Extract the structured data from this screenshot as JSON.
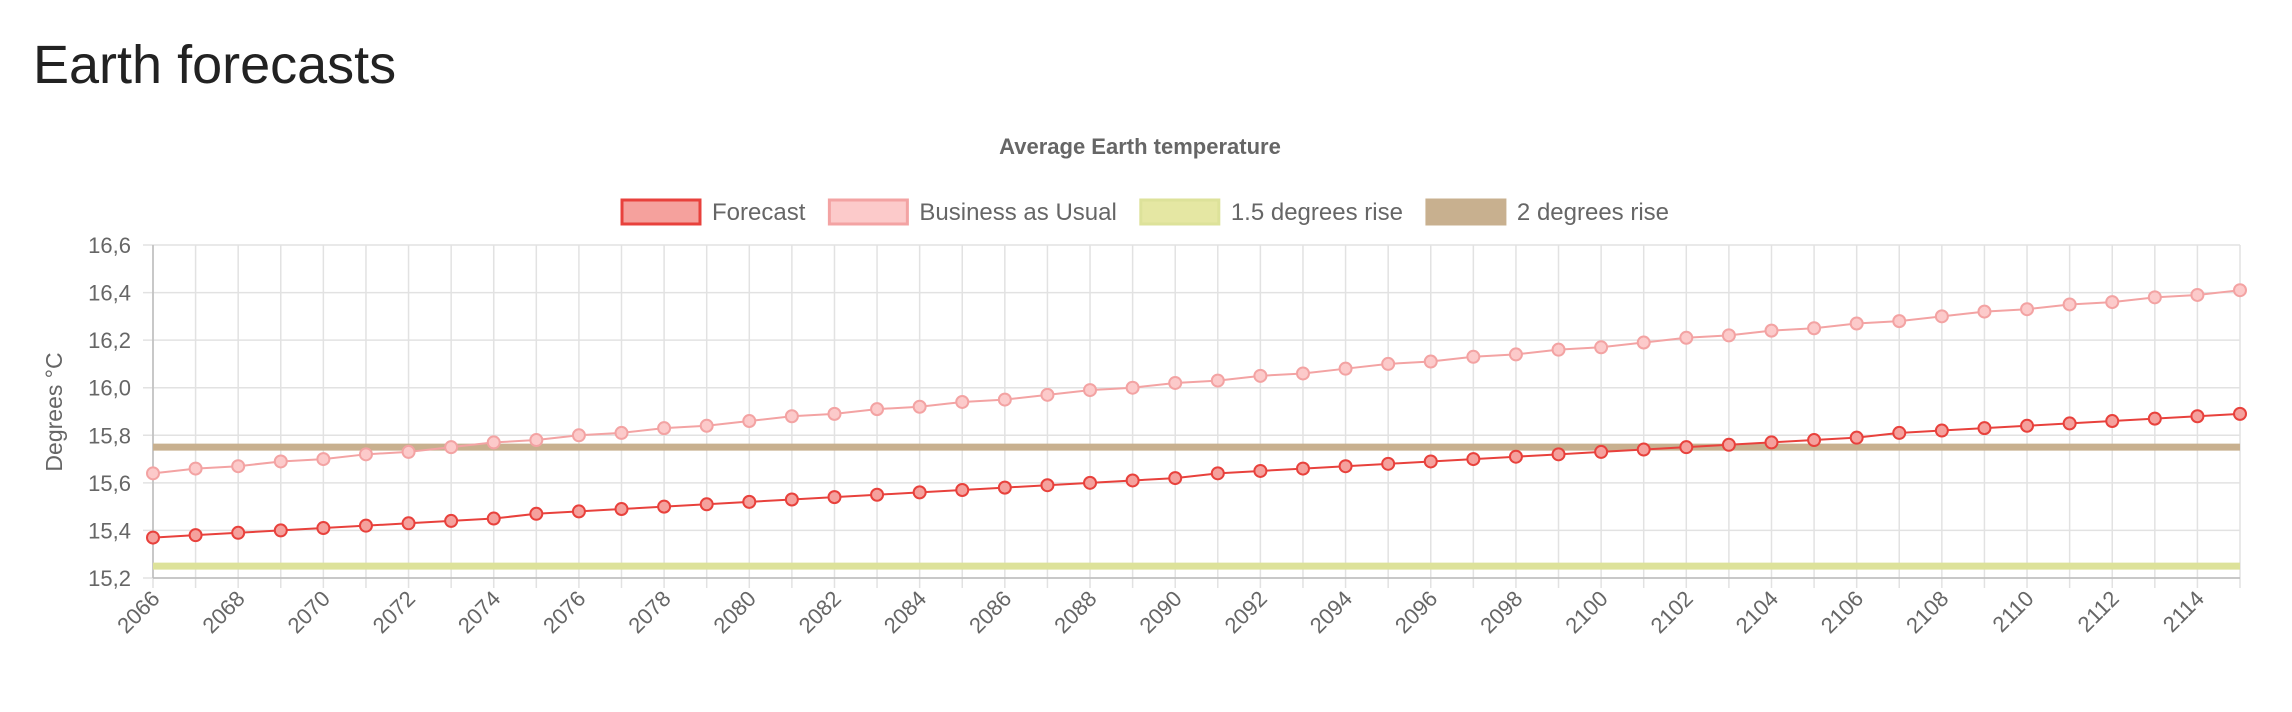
{
  "page_title": "Earth forecasts",
  "chart_data": {
    "type": "line",
    "title": "Average Earth temperature",
    "ylabel": "Degrees °C",
    "categories": [
      "2066",
      null,
      "2068",
      null,
      "2070",
      null,
      "2072",
      null,
      "2074",
      null,
      "2076",
      null,
      "2078",
      null,
      "2080",
      null,
      "2082",
      null,
      "2084",
      null,
      "2086",
      null,
      "2088",
      null,
      "2090",
      null,
      "2092",
      null,
      "2094",
      null,
      "2096",
      null,
      "2098",
      null,
      "2100",
      null,
      "2102",
      null,
      "2104",
      null,
      "2106",
      null,
      "2108",
      null,
      "2110",
      null,
      "2112",
      null,
      "2114",
      null
    ],
    "series": [
      {
        "name": "Forecast",
        "color": "#e8413c",
        "fill": "#f5a19d",
        "points": true,
        "values": [
          15.37,
          15.38,
          15.39,
          15.4,
          15.41,
          15.42,
          15.43,
          15.44,
          15.45,
          15.47,
          15.48,
          15.49,
          15.5,
          15.51,
          15.52,
          15.53,
          15.54,
          15.55,
          15.56,
          15.57,
          15.58,
          15.59,
          15.6,
          15.61,
          15.62,
          15.64,
          15.65,
          15.66,
          15.67,
          15.68,
          15.69,
          15.7,
          15.71,
          15.72,
          15.73,
          15.74,
          15.75,
          15.76,
          15.77,
          15.78,
          15.79,
          15.81,
          15.82,
          15.83,
          15.84,
          15.85,
          15.86,
          15.87,
          15.88,
          15.89
        ]
      },
      {
        "name": "Business as Usual",
        "color": "#f3a3a3",
        "fill": "#fccaca",
        "points": true,
        "values": [
          15.64,
          15.66,
          15.67,
          15.69,
          15.7,
          15.72,
          15.73,
          15.75,
          15.77,
          15.78,
          15.8,
          15.81,
          15.83,
          15.84,
          15.86,
          15.88,
          15.89,
          15.91,
          15.92,
          15.94,
          15.95,
          15.97,
          15.99,
          16.0,
          16.02,
          16.03,
          16.05,
          16.06,
          16.08,
          16.1,
          16.11,
          16.13,
          16.14,
          16.16,
          16.17,
          16.19,
          16.21,
          16.22,
          16.24,
          16.25,
          16.27,
          16.28,
          16.3,
          16.32,
          16.33,
          16.35,
          16.36,
          16.38,
          16.39,
          16.41
        ]
      },
      {
        "name": "1.5 degrees rise",
        "color": "#dde29a",
        "fill": "#e5e7a3",
        "points": false,
        "values": [
          15.25,
          15.25,
          15.25,
          15.25,
          15.25,
          15.25,
          15.25,
          15.25,
          15.25,
          15.25,
          15.25,
          15.25,
          15.25,
          15.25,
          15.25,
          15.25,
          15.25,
          15.25,
          15.25,
          15.25,
          15.25,
          15.25,
          15.25,
          15.25,
          15.25,
          15.25,
          15.25,
          15.25,
          15.25,
          15.25,
          15.25,
          15.25,
          15.25,
          15.25,
          15.25,
          15.25,
          15.25,
          15.25,
          15.25,
          15.25,
          15.25,
          15.25,
          15.25,
          15.25,
          15.25,
          15.25,
          15.25,
          15.25,
          15.25,
          15.25
        ]
      },
      {
        "name": "2 degrees rise",
        "color": "#c8b08f",
        "fill": "#c8b08f",
        "points": false,
        "values": [
          15.75,
          15.75,
          15.75,
          15.75,
          15.75,
          15.75,
          15.75,
          15.75,
          15.75,
          15.75,
          15.75,
          15.75,
          15.75,
          15.75,
          15.75,
          15.75,
          15.75,
          15.75,
          15.75,
          15.75,
          15.75,
          15.75,
          15.75,
          15.75,
          15.75,
          15.75,
          15.75,
          15.75,
          15.75,
          15.75,
          15.75,
          15.75,
          15.75,
          15.75,
          15.75,
          15.75,
          15.75,
          15.75,
          15.75,
          15.75,
          15.75,
          15.75,
          15.75,
          15.75,
          15.75,
          15.75,
          15.75,
          15.75,
          15.75,
          15.75
        ]
      }
    ],
    "ylim": [
      15.2,
      16.6
    ],
    "yticks": [
      {
        "value": 15.2,
        "label": "15,2"
      },
      {
        "value": 15.4,
        "label": "15,4"
      },
      {
        "value": 15.6,
        "label": "15,6"
      },
      {
        "value": 15.8,
        "label": "15,8"
      },
      {
        "value": 16.0,
        "label": "16,0"
      },
      {
        "value": 16.2,
        "label": "16,2"
      },
      {
        "value": 16.4,
        "label": "16,4"
      },
      {
        "value": 16.6,
        "label": "16,6"
      }
    ],
    "grid": true,
    "legend": "top"
  }
}
